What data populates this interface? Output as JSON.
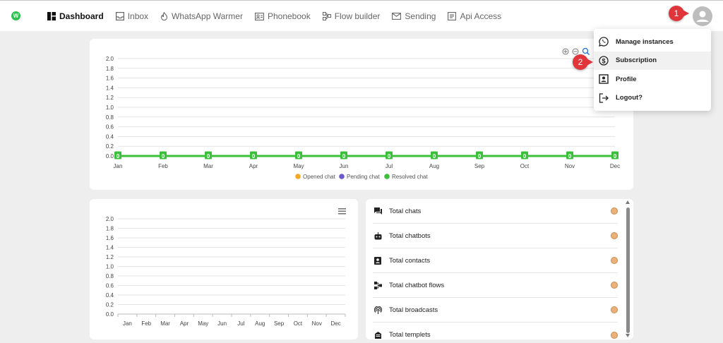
{
  "nav": {
    "items": [
      {
        "label": "Dashboard",
        "icon": "dashboard-icon",
        "active": true
      },
      {
        "label": "Inbox",
        "icon": "inbox-icon"
      },
      {
        "label": "WhatsApp Warmer",
        "icon": "flame-icon"
      },
      {
        "label": "Phonebook",
        "icon": "contact-card-icon"
      },
      {
        "label": "Flow builder",
        "icon": "flow-icon"
      },
      {
        "label": "Sending",
        "icon": "mail-icon"
      },
      {
        "label": "Api Access",
        "icon": "api-icon"
      }
    ]
  },
  "logo": {
    "text": "W",
    "color": "#2ec24f"
  },
  "callouts": {
    "one": "1",
    "two": "2"
  },
  "dropdown": {
    "items": [
      {
        "label": "Manage instances",
        "icon": "whatsapp-icon"
      },
      {
        "label": "Subscription",
        "icon": "dollar-circle-icon",
        "highlighted": true
      },
      {
        "label": "Profile",
        "icon": "profile-icon"
      },
      {
        "label": "Logout?",
        "icon": "logout-icon"
      }
    ]
  },
  "chart_data": [
    {
      "type": "line",
      "categories": [
        "Jan",
        "Feb",
        "Mar",
        "Apr",
        "May",
        "Jun",
        "Jul",
        "Aug",
        "Sep",
        "Oct",
        "Nov",
        "Dec"
      ],
      "series": [
        {
          "name": "Opened chat",
          "color": "#f5a623",
          "values": [
            0,
            0,
            0,
            0,
            0,
            0,
            0,
            0,
            0,
            0,
            0,
            0
          ]
        },
        {
          "name": "Pending chat",
          "color": "#6a5acd",
          "values": [
            0,
            0,
            0,
            0,
            0,
            0,
            0,
            0,
            0,
            0,
            0,
            0
          ]
        },
        {
          "name": "Resolved chat",
          "color": "#3cc03c",
          "values": [
            0,
            0,
            0,
            0,
            0,
            0,
            0,
            0,
            0,
            0,
            0,
            0
          ]
        }
      ],
      "data_labels": [
        "0",
        "0",
        "0",
        "0",
        "0",
        "0",
        "0",
        "0",
        "0",
        "0",
        "0",
        "0"
      ],
      "ylim": [
        0,
        2.0
      ],
      "yticks": [
        "0.0",
        "0.2",
        "0.4",
        "0.6",
        "0.8",
        "1.0",
        "1.2",
        "1.4",
        "1.6",
        "1.8",
        "2.0"
      ],
      "grid": true,
      "legend": "bottom"
    },
    {
      "type": "bar",
      "categories": [
        "Jan",
        "Feb",
        "Mar",
        "Apr",
        "May",
        "Jun",
        "Jul",
        "Aug",
        "Sep",
        "Oct",
        "Nov",
        "Dec"
      ],
      "values": [
        0,
        0,
        0,
        0,
        0,
        0,
        0,
        0,
        0,
        0,
        0,
        0
      ],
      "ylim": [
        0,
        2.0
      ],
      "yticks": [
        "0.0",
        "0.2",
        "0.4",
        "0.6",
        "0.8",
        "1.0",
        "1.2",
        "1.4",
        "1.6",
        "1.8",
        "2.0"
      ],
      "grid": true
    }
  ],
  "stats": {
    "items": [
      {
        "label": "Total chats",
        "icon": "chat-icon"
      },
      {
        "label": "Total chatbots",
        "icon": "bot-icon"
      },
      {
        "label": "Total contacts",
        "icon": "contact-icon"
      },
      {
        "label": "Total chatbot flows",
        "icon": "flow-icon"
      },
      {
        "label": "Total broadcasts",
        "icon": "broadcast-icon"
      },
      {
        "label": "Total templets",
        "icon": "template-icon"
      }
    ]
  }
}
